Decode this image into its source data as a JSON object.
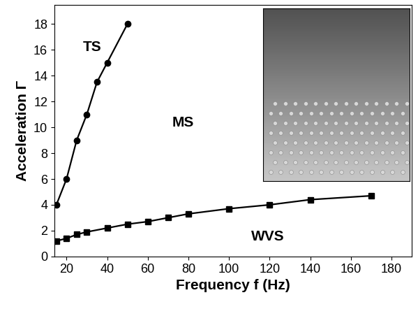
{
  "chart_data": {
    "type": "line",
    "x_label": "Frequency f (Hz)",
    "y_label": "Acceleration Γ",
    "annotations": [
      "TS",
      "MS",
      "WVS"
    ],
    "series": [
      {
        "color": "#000000",
        "marker": "o",
        "line_style": "solid",
        "x": [
          15,
          20,
          25,
          30,
          35,
          40,
          50
        ],
        "values": [
          4,
          6,
          9,
          11,
          13.5,
          15,
          18
        ]
      },
      {
        "color": "#000000",
        "marker": "s",
        "line_style": "solid",
        "x": [
          15,
          20,
          25,
          30,
          40,
          50,
          60,
          70,
          80,
          100,
          120,
          140,
          170
        ],
        "values": [
          1.2,
          1.4,
          1.7,
          1.9,
          2.2,
          2.5,
          2.7,
          3.0,
          3.3,
          3.7,
          4.0,
          4.4,
          4.7
        ]
      }
    ],
    "xlim": [
      14,
      190
    ],
    "xticks": [
      20,
      40,
      60,
      80,
      100,
      120,
      140,
      160,
      180
    ],
    "ylim": [
      0,
      19.5
    ],
    "yticks": [
      0,
      2,
      4,
      6,
      8,
      10,
      12,
      14,
      16,
      18
    ],
    "grid": false
  }
}
